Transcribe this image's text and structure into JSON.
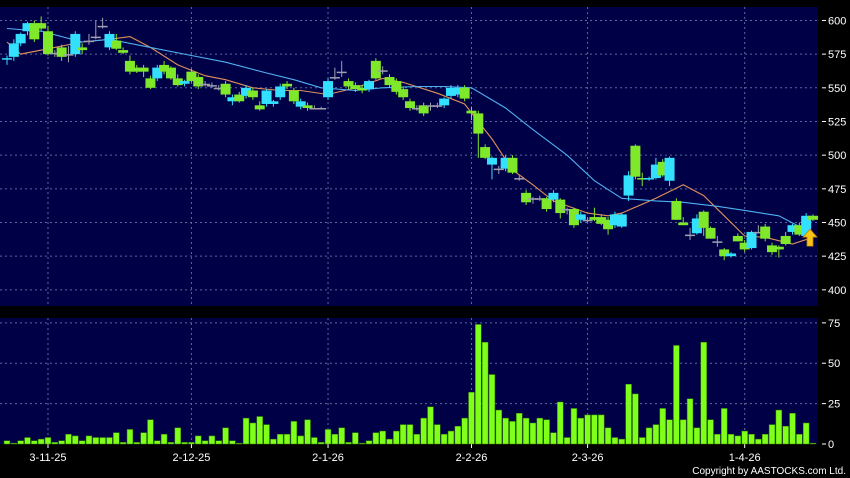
{
  "chart_data": {
    "type": "candlestick",
    "price_panel": {
      "ylim": [
        388,
        610
      ],
      "yticks": [
        400,
        425,
        450,
        475,
        500,
        525,
        550,
        575,
        600
      ],
      "grid": true,
      "up_color": "#33e0ff",
      "down_color": "#7fe82a",
      "doji_color": "#a0a0b0",
      "candles_ohlc": [
        [
          571,
          574,
          567,
          572
        ],
        [
          573,
          586,
          570,
          583
        ],
        [
          583,
          591,
          581,
          590
        ],
        [
          592,
          599,
          589,
          598
        ],
        [
          598,
          600,
          584,
          586
        ],
        [
          598,
          603,
          592,
          594
        ],
        [
          592,
          596,
          574,
          575
        ],
        [
          576,
          578,
          573,
          576
        ],
        [
          580,
          582,
          570,
          573
        ],
        [
          575,
          581,
          569,
          575
        ],
        [
          575,
          592,
          573,
          590
        ],
        [
          580,
          583,
          575,
          578
        ],
        [
          585,
          590,
          582,
          585
        ],
        [
          588,
          600,
          586,
          588
        ],
        [
          596,
          602,
          594,
          596
        ],
        [
          580,
          592,
          578,
          590
        ],
        [
          585,
          590,
          578,
          579
        ],
        [
          578,
          580,
          575,
          576
        ],
        [
          570,
          574,
          560,
          562
        ],
        [
          565,
          567,
          561,
          562
        ],
        [
          565,
          567,
          558,
          562
        ],
        [
          557,
          559,
          549,
          550
        ],
        [
          557,
          567,
          555,
          565
        ],
        [
          567,
          570,
          560,
          562
        ],
        [
          565,
          566,
          556,
          557
        ],
        [
          557,
          560,
          551,
          552
        ],
        [
          553,
          556,
          551,
          555
        ],
        [
          562,
          564,
          554,
          555
        ],
        [
          558,
          560,
          549,
          551
        ],
        [
          553,
          555,
          551,
          553
        ],
        [
          552,
          554,
          550,
          552
        ],
        [
          550,
          552,
          548,
          550
        ],
        [
          553,
          555,
          543,
          545
        ],
        [
          540,
          545,
          537,
          543
        ],
        [
          545,
          547,
          539,
          540
        ],
        [
          544,
          552,
          542,
          550
        ],
        [
          548,
          550,
          541,
          543
        ],
        [
          537,
          540,
          533,
          534
        ],
        [
          538,
          549,
          536,
          548
        ],
        [
          538,
          541,
          536,
          540
        ],
        [
          543,
          553,
          541,
          551
        ],
        [
          553,
          555,
          549,
          551
        ],
        [
          548,
          550,
          538,
          540
        ],
        [
          536,
          542,
          534,
          540
        ],
        [
          537,
          539,
          533,
          535
        ],
        [
          535,
          537,
          534,
          535
        ],
        [
          535,
          536,
          534,
          535
        ],
        [
          543,
          557,
          541,
          555
        ],
        [
          558,
          565,
          556,
          558
        ],
        [
          562,
          570,
          558,
          562
        ],
        [
          555,
          557,
          549,
          551
        ],
        [
          552,
          554,
          547,
          549
        ],
        [
          550,
          552,
          546,
          548
        ],
        [
          549,
          556,
          547,
          555
        ],
        [
          570,
          572,
          556,
          557
        ],
        [
          563,
          566,
          560,
          563
        ],
        [
          558,
          560,
          550,
          552
        ],
        [
          555,
          557,
          545,
          547
        ],
        [
          549,
          551,
          541,
          543
        ],
        [
          540,
          542,
          533,
          535
        ],
        [
          535,
          537,
          533,
          535
        ],
        [
          537,
          539,
          529,
          531
        ],
        [
          537,
          539,
          533,
          537
        ],
        [
          537,
          539,
          535,
          537
        ],
        [
          537,
          543,
          535,
          542
        ],
        [
          544,
          552,
          542,
          550
        ],
        [
          545,
          552,
          543,
          550
        ],
        [
          550,
          552,
          540,
          542
        ],
        [
          533,
          536,
          526,
          531
        ],
        [
          531,
          533,
          498,
          516
        ],
        [
          506,
          508,
          497,
          498
        ],
        [
          493,
          499,
          482,
          498
        ],
        [
          490,
          492,
          486,
          490
        ],
        [
          490,
          500,
          488,
          498
        ],
        [
          498,
          500,
          486,
          487
        ],
        [
          483,
          485,
          481,
          483
        ],
        [
          472,
          474,
          463,
          465
        ],
        [
          468,
          469,
          464,
          468
        ],
        [
          468,
          470,
          466,
          468
        ],
        [
          468,
          469,
          458,
          460
        ],
        [
          467,
          474,
          465,
          472
        ],
        [
          467,
          468,
          453,
          457
        ],
        [
          460,
          461,
          456,
          460
        ],
        [
          460,
          461,
          446,
          448
        ],
        [
          452,
          458,
          450,
          456
        ],
        [
          452,
          454,
          450,
          452
        ],
        [
          454,
          461,
          451,
          452
        ],
        [
          454,
          456,
          448,
          449
        ],
        [
          452,
          454,
          441,
          445
        ],
        [
          448,
          458,
          446,
          456
        ],
        [
          447,
          457,
          446,
          456
        ],
        [
          470,
          488,
          466,
          485
        ],
        [
          507,
          508,
          482,
          484
        ],
        [
          483,
          487,
          477,
          482
        ],
        [
          482,
          484,
          481,
          483
        ],
        [
          483,
          498,
          482,
          493
        ],
        [
          495,
          497,
          484,
          485
        ],
        [
          481,
          499,
          477,
          498
        ],
        [
          466,
          468,
          452,
          452
        ],
        [
          450,
          454,
          448,
          448
        ],
        [
          441,
          446,
          437,
          441
        ],
        [
          442,
          456,
          441,
          453
        ],
        [
          458,
          459,
          440,
          446
        ],
        [
          446,
          447,
          438,
          438
        ],
        [
          436,
          440,
          432,
          436
        ],
        [
          430,
          431,
          422,
          425
        ],
        [
          425,
          428,
          424,
          427
        ],
        [
          440,
          442,
          436,
          436
        ],
        [
          435,
          437,
          428,
          430
        ],
        [
          431,
          444,
          430,
          443
        ],
        [
          443,
          448,
          442,
          443
        ],
        [
          447,
          449,
          436,
          438
        ],
        [
          433,
          435,
          426,
          428
        ],
        [
          432,
          433,
          424,
          430
        ],
        [
          440,
          443,
          433,
          434
        ],
        [
          443,
          449,
          441,
          448
        ],
        [
          448,
          450,
          440,
          441
        ],
        [
          440,
          457,
          439,
          455
        ],
        [
          455,
          456,
          451,
          452
        ]
      ],
      "ma_lines": [
        {
          "color": "#e0905a",
          "points": [
            [
              0,
              584
            ],
            [
              2,
              575
            ],
            [
              7,
              580
            ],
            [
              11,
              584
            ],
            [
              15,
              586
            ],
            [
              18,
              588
            ],
            [
              21,
              580
            ],
            [
              25,
              567
            ],
            [
              29,
              559
            ],
            [
              32,
              556
            ],
            [
              36,
              550
            ],
            [
              40,
              548
            ],
            [
              43,
              548
            ],
            [
              47,
              545
            ],
            [
              51,
              550
            ],
            [
              55,
              557
            ],
            [
              58,
              554
            ],
            [
              63,
              546
            ],
            [
              67,
              538
            ],
            [
              71,
              512
            ],
            [
              74,
              489
            ],
            [
              77,
              478
            ],
            [
              80,
              466
            ],
            [
              85,
              457
            ],
            [
              88,
              455
            ],
            [
              90,
              457
            ],
            [
              95,
              468
            ],
            [
              99,
              478
            ],
            [
              102,
              470
            ],
            [
              105,
              455
            ],
            [
              108,
              440
            ],
            [
              111,
              439
            ],
            [
              115,
              434
            ],
            [
              118,
              439
            ]
          ]
        },
        {
          "color": "#4fb0f0",
          "points": [
            [
              0,
              594
            ],
            [
              5,
              592
            ],
            [
              11,
              584
            ],
            [
              15,
              586
            ],
            [
              21,
              580
            ],
            [
              27,
              574
            ],
            [
              32,
              569
            ],
            [
              38,
              561
            ],
            [
              42,
              556
            ],
            [
              46,
              550
            ],
            [
              51,
              548
            ],
            [
              55,
              550
            ],
            [
              60,
              551
            ],
            [
              64,
              551
            ],
            [
              68,
              550
            ],
            [
              73,
              535
            ],
            [
              77,
              519
            ],
            [
              82,
              500
            ],
            [
              86,
              481
            ],
            [
              90,
              468
            ],
            [
              95,
              466
            ],
            [
              99,
              465
            ],
            [
              104,
              462
            ],
            [
              108,
              459
            ],
            [
              113,
              455
            ],
            [
              116,
              447
            ],
            [
              118,
              442
            ]
          ]
        }
      ],
      "signal_marker": {
        "type": "up-arrow",
        "candle": 118,
        "color": "#f5c518"
      }
    },
    "volume_panel": {
      "ylim": [
        0,
        78
      ],
      "yticks": [
        0,
        25,
        50,
        75
      ],
      "bar_color": "#7fff1a",
      "values": [
        2,
        0.5,
        2,
        4,
        2,
        3,
        4,
        1,
        2,
        6,
        5,
        2,
        5,
        4,
        4,
        4,
        7,
        1,
        9,
        1,
        7,
        15,
        2,
        6,
        1,
        10,
        1,
        1,
        5,
        2,
        5,
        2,
        10,
        2,
        0.5,
        16,
        13,
        17,
        12,
        3,
        6,
        6,
        14,
        5,
        15,
        4,
        1,
        9,
        6,
        10,
        1,
        7,
        0.5,
        2,
        7,
        8,
        3,
        8,
        12,
        12,
        6,
        16,
        23,
        12,
        6,
        8,
        11,
        16,
        32,
        74,
        63,
        43,
        21,
        16,
        14,
        19,
        16,
        13,
        16,
        15,
        7,
        26,
        4,
        22,
        16,
        18,
        18,
        18,
        10,
        4,
        3,
        37,
        31,
        4,
        10,
        12,
        22,
        15,
        61,
        15,
        28,
        10,
        63,
        15,
        6,
        22,
        6,
        5,
        8,
        6,
        3,
        6,
        12,
        21,
        11,
        19,
        6,
        13,
        0.5
      ]
    },
    "x_tick_labels": [
      {
        "label": "3-11-25",
        "candle": 6
      },
      {
        "label": "2-12-25",
        "candle": 27
      },
      {
        "label": "2-1-26",
        "candle": 47
      },
      {
        "label": "2-2-26",
        "candle": 68
      },
      {
        "label": "2-3-26",
        "candle": 85
      },
      {
        "label": "1-4-26",
        "candle": 108
      }
    ]
  },
  "colors": {
    "panel_bg": "#000046",
    "grid": "#5a6a9a",
    "axis_text": "#ffffff"
  },
  "footer": {
    "copyright": "Copyright by AASTOCKS.com Ltd."
  }
}
